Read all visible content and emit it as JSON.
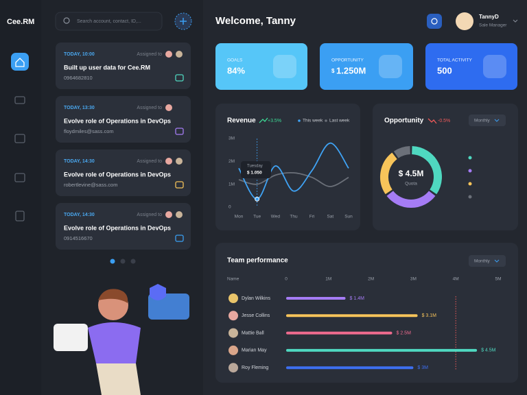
{
  "brand": "Cee.RM",
  "search": {
    "placeholder": "Search account, contact, ID,..."
  },
  "tasks": [
    {
      "time": "TODAY, 10:00",
      "assigned": "Assigned to",
      "title": "Built up user data for Cee.RM",
      "contact": "0964682810"
    },
    {
      "time": "TODAY, 13:30",
      "assigned": "Assigned to",
      "title": "Evolve role of Operations in DevOps",
      "contact": "floydmiles@sass.com"
    },
    {
      "time": "TODAY, 14:30",
      "assigned": "Assigned to",
      "title": "Evolve role of Operations in DevOps",
      "contact": "robertlevine@sass.com"
    },
    {
      "time": "TODAY, 14:30",
      "assigned": "Assigned to",
      "title": "Evolve role of Operations in DevOps",
      "contact": "0914516670"
    }
  ],
  "header": {
    "welcome": "Welcome, Tanny",
    "user": {
      "name": "TannyD",
      "role": "Sale Manager"
    }
  },
  "stats": [
    {
      "label": "GOALS",
      "value": "84%",
      "color": "#56c6f8"
    },
    {
      "label": "OPPORTUNITY",
      "prefix": "$",
      "value": "1.250M",
      "color": "#3b9ff3"
    },
    {
      "label": "TOTAL ACTIVITY",
      "value": "500",
      "color": "#2e6cf0"
    }
  ],
  "revenue": {
    "type": "line",
    "title": "Revenue",
    "change": "+3.5%",
    "categories": [
      "Mon",
      "Tue",
      "Wed",
      "Thu",
      "Fri",
      "Sat",
      "Sun"
    ],
    "ylim": [
      0,
      3
    ],
    "yticks": [
      0,
      {
        "value": 1,
        "label": "1M"
      },
      {
        "value": 2,
        "label": "2M"
      },
      {
        "value": 3,
        "label": "3M"
      }
    ],
    "series": [
      {
        "name": "This week",
        "color": "#3fa3f5",
        "values": [
          1.7,
          0.35,
          1.8,
          0.7,
          1.6,
          2.8,
          1.7
        ]
      },
      {
        "name": "Last week",
        "color": "#6b7079",
        "values": [
          1.2,
          1.0,
          1.4,
          1.5,
          1.3,
          0.9,
          1.3
        ]
      }
    ],
    "tooltip": {
      "day": "Tuesday",
      "value": "$ 1.050"
    }
  },
  "opportunity": {
    "type": "pie",
    "title": "Opportunity",
    "change": "-0.5%",
    "period": "Monthly",
    "center": {
      "value": "$ 4.5M",
      "label": "Quota"
    },
    "values": [
      35,
      30,
      25,
      10
    ],
    "colors": [
      "#4fd8c0",
      "#a57cf5",
      "#f7c45a",
      "#6b7079"
    ]
  },
  "team": {
    "type": "bar",
    "title": "Team performance",
    "period": "Monthly",
    "axis_label": "Name",
    "xlim": [
      0,
      5
    ],
    "xticks": [
      0,
      {
        "value": 1,
        "label": "1M"
      },
      {
        "value": 2,
        "label": "2M"
      },
      {
        "value": 3,
        "label": "3M"
      },
      {
        "value": 4,
        "label": "4M"
      },
      {
        "value": 5,
        "label": "5M"
      }
    ],
    "categories": [
      "Dylan Wilkins",
      "Jesse Collins",
      "Mattie Ball",
      "Marian May",
      "Roy Fleming"
    ],
    "values": [
      1.4,
      3.1,
      2.5,
      4.5,
      3
    ],
    "value_labels": [
      "$ 1.4M",
      "$ 3.1M",
      "$ 2.5M",
      "$ 4.5M",
      "$ 3M"
    ],
    "colors": [
      "#a57cf5",
      "#f7c45a",
      "#f06b8f",
      "#4fd8c0",
      "#3d6ff0"
    ],
    "reference_line": 4
  }
}
